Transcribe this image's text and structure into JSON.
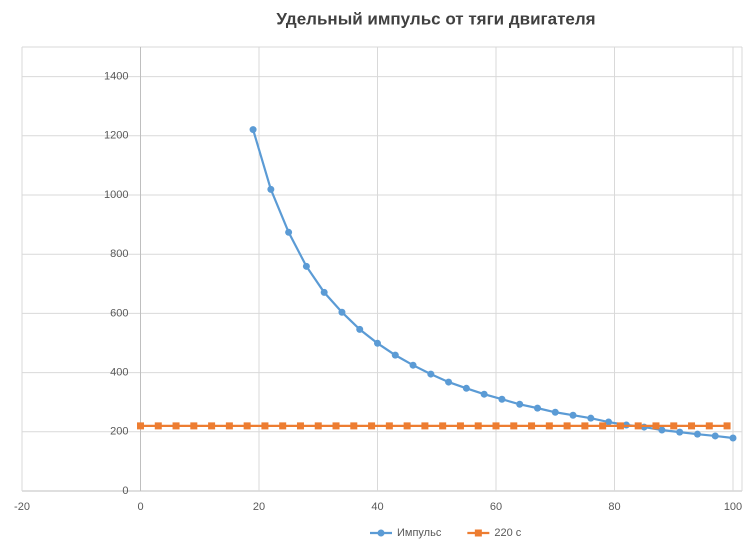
{
  "chart_data": {
    "type": "line",
    "title": "Удельный импульс от тяги двигателя",
    "xlim": [
      -20,
      100
    ],
    "xticks": [
      -20,
      0,
      20,
      40,
      60,
      80,
      100
    ],
    "ylim": [
      0,
      1500
    ],
    "yticks": [
      0,
      200,
      400,
      600,
      800,
      1000,
      1200,
      1400
    ],
    "grid": true,
    "legend": "bottom",
    "series": [
      {
        "name": "Импульс",
        "color": "#5b9bd5",
        "marker": "circle",
        "x": [
          19,
          22,
          25,
          28,
          31,
          34,
          37,
          40,
          43,
          46,
          49,
          52,
          55,
          58,
          61,
          64,
          67,
          70,
          73,
          76,
          79,
          82,
          85,
          88,
          91,
          94,
          97,
          100
        ],
        "values": [
          1221,
          1019,
          874,
          759,
          671,
          604,
          546,
          499,
          459,
          425,
          395,
          368,
          347,
          327,
          310,
          293,
          280,
          266,
          256,
          246,
          233,
          223,
          216,
          206,
          199,
          192,
          186,
          179
        ]
      },
      {
        "name": "220 с",
        "color": "#ed7d31",
        "marker": "square",
        "x": [
          0,
          3,
          6,
          9,
          12,
          15,
          18,
          21,
          24,
          27,
          30,
          33,
          36,
          39,
          42,
          45,
          48,
          51,
          54,
          57,
          60,
          63,
          66,
          69,
          72,
          75,
          78,
          81,
          84,
          87,
          90,
          93,
          96,
          99
        ],
        "values": [
          220,
          220,
          220,
          220,
          220,
          220,
          220,
          220,
          220,
          220,
          220,
          220,
          220,
          220,
          220,
          220,
          220,
          220,
          220,
          220,
          220,
          220,
          220,
          220,
          220,
          220,
          220,
          220,
          220,
          220,
          220,
          220,
          220,
          220
        ]
      }
    ]
  }
}
